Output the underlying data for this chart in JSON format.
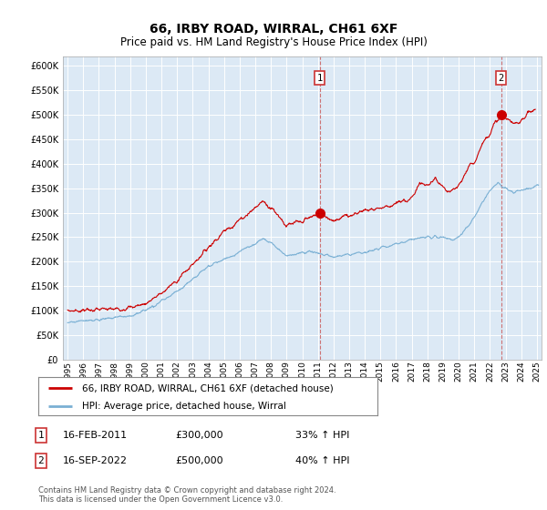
{
  "title": "66, IRBY ROAD, WIRRAL, CH61 6XF",
  "subtitle": "Price paid vs. HM Land Registry's House Price Index (HPI)",
  "background_color": "#ffffff",
  "plot_bg_color": "#dce9f5",
  "grid_color": "#ffffff",
  "red_line_color": "#cc0000",
  "blue_line_color": "#7ab0d4",
  "marker1_x": 2011.12,
  "marker1_y": 300000,
  "marker2_x": 2022.71,
  "marker2_y": 500000,
  "ylim": [
    0,
    620000
  ],
  "xlim": [
    1994.7,
    2025.3
  ],
  "yticks": [
    0,
    50000,
    100000,
    150000,
    200000,
    250000,
    300000,
    350000,
    400000,
    450000,
    500000,
    550000,
    600000
  ],
  "xticks": [
    1995,
    1996,
    1997,
    1998,
    1999,
    2000,
    2001,
    2002,
    2003,
    2004,
    2005,
    2006,
    2007,
    2008,
    2009,
    2010,
    2011,
    2012,
    2013,
    2014,
    2015,
    2016,
    2017,
    2018,
    2019,
    2020,
    2021,
    2022,
    2023,
    2024,
    2025
  ],
  "legend_prop_label": "66, IRBY ROAD, WIRRAL, CH61 6XF (detached house)",
  "legend_hpi_label": "HPI: Average price, detached house, Wirral",
  "marker1_date": "16-FEB-2011",
  "marker1_price": "£300,000",
  "marker1_hpi": "33% ↑ HPI",
  "marker2_date": "16-SEP-2022",
  "marker2_price": "£500,000",
  "marker2_hpi": "40% ↑ HPI",
  "footer": "Contains HM Land Registry data © Crown copyright and database right 2024.\nThis data is licensed under the Open Government Licence v3.0."
}
